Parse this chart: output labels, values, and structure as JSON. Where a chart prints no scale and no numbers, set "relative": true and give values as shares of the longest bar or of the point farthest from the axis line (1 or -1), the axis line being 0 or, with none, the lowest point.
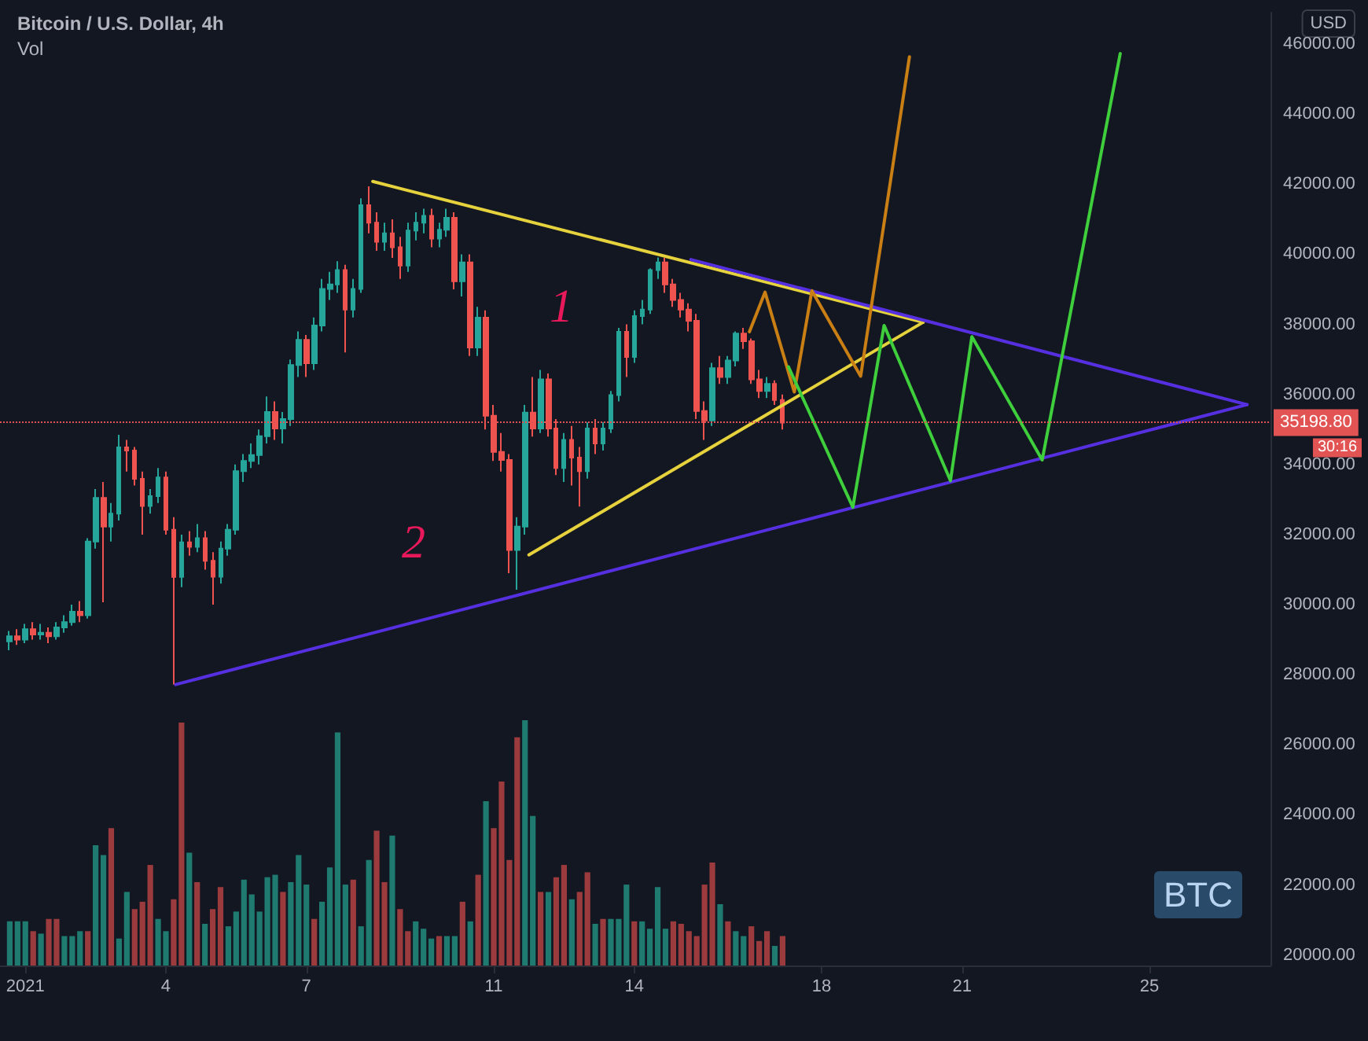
{
  "chart_data": [
    {
      "type": "candlestick",
      "title": "Bitcoin / U.S. Dollar, 4h",
      "subtitle": "Vol",
      "ylabel": "USD",
      "x": [
        "2020-12-31T16:00",
        "2020-12-31T20:00",
        "2021-01-01T00:00",
        "2021-01-01T04:00",
        "2021-01-01T08:00",
        "2021-01-01T12:00",
        "2021-01-01T16:00",
        "2021-01-01T20:00",
        "2021-01-02T00:00",
        "2021-01-02T04:00",
        "2021-01-02T08:00",
        "2021-01-02T12:00",
        "2021-01-02T16:00",
        "2021-01-02T20:00",
        "2021-01-03T00:00",
        "2021-01-03T04:00",
        "2021-01-03T08:00",
        "2021-01-03T12:00",
        "2021-01-03T16:00",
        "2021-01-03T20:00",
        "2021-01-04T00:00",
        "2021-01-04T04:00",
        "2021-01-04T08:00",
        "2021-01-04T12:00",
        "2021-01-04T16:00",
        "2021-01-04T20:00",
        "2021-01-05T00:00",
        "2021-01-05T04:00",
        "2021-01-05T08:00",
        "2021-01-05T12:00",
        "2021-01-05T16:00",
        "2021-01-05T20:00",
        "2021-01-06T00:00",
        "2021-01-06T04:00",
        "2021-01-06T08:00",
        "2021-01-06T12:00",
        "2021-01-06T16:00",
        "2021-01-06T20:00",
        "2021-01-07T00:00",
        "2021-01-07T04:00",
        "2021-01-07T08:00",
        "2021-01-07T12:00",
        "2021-01-07T16:00",
        "2021-01-07T20:00",
        "2021-01-08T00:00",
        "2021-01-08T04:00",
        "2021-01-08T08:00",
        "2021-01-08T12:00",
        "2021-01-08T16:00",
        "2021-01-08T20:00",
        "2021-01-09T00:00",
        "2021-01-09T04:00",
        "2021-01-09T08:00",
        "2021-01-09T12:00",
        "2021-01-09T16:00",
        "2021-01-09T20:00",
        "2021-01-10T00:00",
        "2021-01-10T04:00",
        "2021-01-10T08:00",
        "2021-01-10T12:00",
        "2021-01-10T16:00",
        "2021-01-10T20:00",
        "2021-01-11T00:00",
        "2021-01-11T04:00",
        "2021-01-11T08:00",
        "2021-01-11T12:00",
        "2021-01-11T16:00",
        "2021-01-11T20:00",
        "2021-01-12T00:00",
        "2021-01-12T04:00",
        "2021-01-12T08:00",
        "2021-01-12T12:00",
        "2021-01-12T16:00",
        "2021-01-12T20:00",
        "2021-01-13T00:00",
        "2021-01-13T04:00",
        "2021-01-13T08:00",
        "2021-01-13T12:00",
        "2021-01-13T16:00",
        "2021-01-13T20:00",
        "2021-01-14T00:00",
        "2021-01-14T04:00",
        "2021-01-14T08:00",
        "2021-01-14T12:00",
        "2021-01-14T16:00",
        "2021-01-14T20:00",
        "2021-01-15T00:00",
        "2021-01-15T04:00",
        "2021-01-15T08:00",
        "2021-01-15T12:00",
        "2021-01-15T16:00",
        "2021-01-15T20:00",
        "2021-01-16T00:00",
        "2021-01-16T04:00",
        "2021-01-16T08:00",
        "2021-01-16T12:00",
        "2021-01-16T16:00",
        "2021-01-16T20:00",
        "2021-01-17T00:00",
        "2021-01-17T04:00"
      ],
      "ohlc": [
        [
          28950,
          29250,
          28700,
          29100
        ],
        [
          29100,
          29300,
          28850,
          29000
        ],
        [
          29000,
          29450,
          28900,
          29300
        ],
        [
          29300,
          29500,
          29000,
          29150
        ],
        [
          29150,
          29450,
          29000,
          29200
        ],
        [
          29200,
          29350,
          28900,
          29100
        ],
        [
          29100,
          29500,
          29000,
          29350
        ],
        [
          29350,
          29700,
          29200,
          29500
        ],
        [
          29500,
          30000,
          29400,
          29800
        ],
        [
          29800,
          30100,
          29500,
          29700
        ],
        [
          29700,
          31900,
          29600,
          31800
        ],
        [
          31800,
          33300,
          31600,
          33050
        ],
        [
          33050,
          33500,
          30070,
          32230
        ],
        [
          32230,
          32900,
          31800,
          32600
        ],
        [
          32600,
          34850,
          32400,
          34490
        ],
        [
          34490,
          34700,
          33800,
          34400
        ],
        [
          34400,
          34500,
          33400,
          33590
        ],
        [
          33590,
          33800,
          32000,
          32820
        ],
        [
          32820,
          33300,
          32600,
          33100
        ],
        [
          33100,
          33900,
          32900,
          33630
        ],
        [
          33630,
          33800,
          32000,
          32140
        ],
        [
          32140,
          32500,
          27720,
          30790
        ],
        [
          30790,
          32000,
          30500,
          31780
        ],
        [
          31780,
          32100,
          31400,
          31650
        ],
        [
          31650,
          32300,
          31500,
          31900
        ],
        [
          31900,
          32100,
          31000,
          31250
        ],
        [
          31250,
          31500,
          30000,
          30800
        ],
        [
          30800,
          31800,
          30600,
          31600
        ],
        [
          31600,
          32300,
          31400,
          32140
        ],
        [
          32140,
          34000,
          32000,
          33810
        ],
        [
          33810,
          34300,
          33500,
          34100
        ],
        [
          34100,
          34600,
          33900,
          34270
        ],
        [
          34270,
          35000,
          34000,
          34810
        ],
        [
          34810,
          35940,
          34600,
          35500
        ],
        [
          35500,
          35800,
          34700,
          35030
        ],
        [
          35030,
          35500,
          34600,
          35300
        ],
        [
          35300,
          37000,
          35100,
          36840
        ],
        [
          36840,
          37800,
          36500,
          37560
        ],
        [
          37560,
          37700,
          36500,
          36890
        ],
        [
          36890,
          38200,
          36700,
          37970
        ],
        [
          37970,
          39300,
          37800,
          39010
        ],
        [
          39010,
          39500,
          38700,
          39140
        ],
        [
          39140,
          39800,
          38900,
          39550
        ],
        [
          39550,
          39700,
          37200,
          38420
        ],
        [
          38420,
          39300,
          38200,
          39010
        ],
        [
          39010,
          41600,
          38900,
          41400
        ],
        [
          41400,
          41940,
          40600,
          40900
        ],
        [
          40900,
          41200,
          40100,
          40360
        ],
        [
          40360,
          40900,
          40100,
          40600
        ],
        [
          40600,
          41000,
          39900,
          40200
        ],
        [
          40200,
          40500,
          39300,
          39680
        ],
        [
          39680,
          40900,
          39500,
          40680
        ],
        [
          40680,
          41200,
          40400,
          40900
        ],
        [
          40900,
          41300,
          40600,
          41100
        ],
        [
          41100,
          41300,
          40200,
          40450
        ],
        [
          40450,
          40900,
          40200,
          40700
        ],
        [
          40700,
          41300,
          40500,
          41040
        ],
        [
          41040,
          41200,
          39000,
          39230
        ],
        [
          39230,
          40000,
          38800,
          39770
        ],
        [
          39770,
          40000,
          37100,
          37340
        ],
        [
          37340,
          38500,
          37100,
          38190
        ],
        [
          38190,
          38400,
          35000,
          35390
        ],
        [
          35390,
          35700,
          34100,
          34360
        ],
        [
          34360,
          34900,
          33800,
          34130
        ],
        [
          34130,
          34300,
          30900,
          31560
        ],
        [
          31560,
          32500,
          30430,
          32230
        ],
        [
          32230,
          35700,
          32000,
          35480
        ],
        [
          35480,
          36500,
          34800,
          35030
        ],
        [
          35030,
          36700,
          34900,
          36430
        ],
        [
          36430,
          36600,
          34800,
          35030
        ],
        [
          35030,
          35300,
          33700,
          33900
        ],
        [
          33900,
          34900,
          33500,
          34700
        ],
        [
          34700,
          35100,
          33400,
          34200
        ],
        [
          34200,
          34500,
          32800,
          33810
        ],
        [
          33810,
          35200,
          33600,
          35030
        ],
        [
          35030,
          35300,
          34300,
          34600
        ],
        [
          34600,
          35200,
          34400,
          35030
        ],
        [
          35030,
          36100,
          34900,
          35980
        ],
        [
          35980,
          37900,
          35800,
          37790
        ],
        [
          37790,
          38000,
          36500,
          37070
        ],
        [
          37070,
          38400,
          36900,
          38240
        ],
        [
          38240,
          38700,
          38000,
          38420
        ],
        [
          38420,
          39600,
          38300,
          39550
        ],
        [
          39550,
          39910,
          39300,
          39770
        ],
        [
          39770,
          39900,
          38900,
          39140
        ],
        [
          39140,
          39300,
          38500,
          38700
        ],
        [
          38700,
          38900,
          38200,
          38420
        ],
        [
          38420,
          38600,
          37800,
          38100
        ],
        [
          38100,
          38300,
          35300,
          35530
        ],
        [
          35530,
          35800,
          34700,
          35260
        ],
        [
          35260,
          36900,
          35100,
          36750
        ],
        [
          36750,
          37100,
          36300,
          36500
        ],
        [
          36500,
          37100,
          36300,
          36970
        ],
        [
          36970,
          37800,
          36800,
          37740
        ],
        [
          37740,
          37900,
          37300,
          37520
        ],
        [
          37520,
          37600,
          36300,
          36430
        ],
        [
          36430,
          36700,
          35900,
          36100
        ],
        [
          36100,
          36500,
          35900,
          36300
        ],
        [
          36300,
          36400,
          35700,
          35840
        ],
        [
          35840,
          36000,
          35000,
          35198.8
        ]
      ],
      "colors": [
        "#26a69a",
        "#ef5350",
        "#26a69a",
        "#ef5350",
        "#26a69a",
        "#ef5350",
        "#26a69a",
        "#26a69a",
        "#26a69a",
        "#ef5350",
        "#26a69a",
        "#26a69a",
        "#ef5350",
        "#26a69a",
        "#26a69a",
        "#ef5350",
        "#ef5350",
        "#ef5350",
        "#26a69a",
        "#26a69a",
        "#ef5350",
        "#ef5350",
        "#26a69a",
        "#ef5350",
        "#26a69a",
        "#ef5350",
        "#ef5350",
        "#26a69a",
        "#26a69a",
        "#26a69a",
        "#26a69a",
        "#26a69a",
        "#26a69a",
        "#26a69a",
        "#ef5350",
        "#26a69a",
        "#26a69a",
        "#26a69a",
        "#ef5350",
        "#26a69a",
        "#26a69a",
        "#26a69a",
        "#26a69a",
        "#ef5350",
        "#26a69a",
        "#26a69a",
        "#ef5350",
        "#ef5350",
        "#26a69a",
        "#ef5350",
        "#ef5350",
        "#26a69a",
        "#26a69a",
        "#26a69a",
        "#ef5350",
        "#26a69a",
        "#26a69a",
        "#ef5350",
        "#26a69a",
        "#ef5350",
        "#26a69a",
        "#ef5350",
        "#ef5350",
        "#ef5350",
        "#ef5350",
        "#26a69a",
        "#26a69a",
        "#ef5350",
        "#26a69a",
        "#ef5350",
        "#ef5350",
        "#26a69a",
        "#ef5350",
        "#ef5350",
        "#26a69a",
        "#ef5350",
        "#26a69a",
        "#26a69a",
        "#26a69a",
        "#ef5350",
        "#26a69a",
        "#26a69a",
        "#26a69a",
        "#26a69a",
        "#ef5350",
        "#ef5350",
        "#ef5350",
        "#ef5350",
        "#ef5350",
        "#ef5350",
        "#26a69a",
        "#ef5350",
        "#26a69a",
        "#26a69a",
        "#ef5350",
        "#ef5350",
        "#ef5350",
        "#26a69a",
        "#ef5350",
        "#ef5350"
      ],
      "series": [
        {
          "type": "line",
          "color": "#e6d23c",
          "x": [
            "2021-01-08T10:00",
            "2021-01-20T04:00"
          ],
          "values": [
            42080,
            38060
          ]
        },
        {
          "type": "line",
          "color": "#e6d23c",
          "x": [
            "2021-01-11T18:00",
            "2021-01-20T04:00"
          ],
          "values": [
            31420,
            38060
          ]
        },
        {
          "type": "line",
          "color": "#5630e0",
          "x": [
            "2021-01-04T05:00",
            "2021-01-27T02:00"
          ],
          "values": [
            27720,
            35710
          ]
        },
        {
          "type": "line",
          "color": "#5630e0",
          "x": [
            "2021-01-15T05:00",
            "2021-01-27T02:00"
          ],
          "values": [
            39850,
            35710
          ]
        },
        {
          "type": "line",
          "color": "#c97f14",
          "x": [
            "2021-01-16T11:00",
            "2021-01-16T19:00",
            "2021-01-17T10:00",
            "2021-01-17T19:00",
            "2021-01-18T20:00",
            "2021-01-19T21:00"
          ],
          "values": [
            37790,
            38920,
            36070,
            38960,
            36520,
            45640
          ]
        },
        {
          "type": "line",
          "color": "#3fcf3c",
          "x": [
            "2021-01-17T07:00",
            "2021-01-18T16:00",
            "2021-01-19T08:00",
            "2021-01-20T18:00",
            "2021-01-21T05:00",
            "2021-01-22T17:00",
            "2021-01-24T09:00"
          ],
          "values": [
            36790,
            32780,
            37970,
            33540,
            37650,
            34130,
            45730
          ]
        }
      ],
      "xlim": [
        "2020-12-31T11:00",
        "2021-01-27T14:00"
      ],
      "xticks": [
        {
          "value": "2021-01-01",
          "label": "2021"
        },
        {
          "value": "2021-01-04",
          "label": "4"
        },
        {
          "value": "2021-01-07",
          "label": "7"
        },
        {
          "value": "2021-01-11",
          "label": "11"
        },
        {
          "value": "2021-01-14",
          "label": "14"
        },
        {
          "value": "2021-01-18",
          "label": "18"
        },
        {
          "value": "2021-01-21",
          "label": "21"
        },
        {
          "value": "2021-01-25",
          "label": "25"
        }
      ],
      "ylim": [
        19700,
        46900
      ],
      "yticks": [
        {
          "value": 20000,
          "label": "20000.00"
        },
        {
          "value": 22000,
          "label": "22000.00"
        },
        {
          "value": 24000,
          "label": "24000.00"
        },
        {
          "value": 26000,
          "label": "26000.00"
        },
        {
          "value": 28000,
          "label": "28000.00"
        },
        {
          "value": 30000,
          "label": "30000.00"
        },
        {
          "value": 32000,
          "label": "32000.00"
        },
        {
          "value": 34000,
          "label": "34000.00"
        },
        {
          "value": 36000,
          "label": "36000.00"
        },
        {
          "value": 38000,
          "label": "38000.00"
        },
        {
          "value": 40000,
          "label": "40000.00"
        },
        {
          "value": 42000,
          "label": "42000.00"
        },
        {
          "value": 44000,
          "label": "44000.00"
        },
        {
          "value": 46000,
          "label": "46000.00"
        }
      ],
      "ref_lines": [
        {
          "axis": "y",
          "value": 35198.8,
          "label": "35198.80",
          "color": "#e25454",
          "line_style": "dotted"
        }
      ],
      "annotations": [
        "1",
        "2",
        "BTC",
        "30:16"
      ],
      "marker": "none",
      "line_style": "solid"
    },
    {
      "type": "bar",
      "relative": true,
      "x": [
        "2020-12-31T16:00",
        "2020-12-31T20:00",
        "2021-01-01T00:00",
        "2021-01-01T04:00",
        "2021-01-01T08:00",
        "2021-01-01T12:00",
        "2021-01-01T16:00",
        "2021-01-01T20:00",
        "2021-01-02T00:00",
        "2021-01-02T04:00",
        "2021-01-02T08:00",
        "2021-01-02T12:00",
        "2021-01-02T16:00",
        "2021-01-02T20:00",
        "2021-01-03T00:00",
        "2021-01-03T04:00",
        "2021-01-03T08:00",
        "2021-01-03T12:00",
        "2021-01-03T16:00",
        "2021-01-03T20:00",
        "2021-01-04T00:00",
        "2021-01-04T04:00",
        "2021-01-04T08:00",
        "2021-01-04T12:00",
        "2021-01-04T16:00",
        "2021-01-04T20:00",
        "2021-01-05T00:00",
        "2021-01-05T04:00",
        "2021-01-05T08:00",
        "2021-01-05T12:00",
        "2021-01-05T16:00",
        "2021-01-05T20:00",
        "2021-01-06T00:00",
        "2021-01-06T04:00",
        "2021-01-06T08:00",
        "2021-01-06T12:00",
        "2021-01-06T16:00",
        "2021-01-06T20:00",
        "2021-01-07T00:00",
        "2021-01-07T04:00",
        "2021-01-07T08:00",
        "2021-01-07T12:00",
        "2021-01-07T16:00",
        "2021-01-07T20:00",
        "2021-01-08T00:00",
        "2021-01-08T04:00",
        "2021-01-08T08:00",
        "2021-01-08T12:00",
        "2021-01-08T16:00",
        "2021-01-08T20:00",
        "2021-01-09T00:00",
        "2021-01-09T04:00",
        "2021-01-09T08:00",
        "2021-01-09T12:00",
        "2021-01-09T16:00",
        "2021-01-09T20:00",
        "2021-01-10T00:00",
        "2021-01-10T04:00",
        "2021-01-10T08:00",
        "2021-01-10T12:00",
        "2021-01-10T16:00",
        "2021-01-10T20:00",
        "2021-01-11T00:00",
        "2021-01-11T04:00",
        "2021-01-11T08:00",
        "2021-01-11T12:00",
        "2021-01-11T16:00",
        "2021-01-11T20:00",
        "2021-01-12T00:00",
        "2021-01-12T04:00",
        "2021-01-12T08:00",
        "2021-01-12T12:00",
        "2021-01-12T16:00",
        "2021-01-12T20:00",
        "2021-01-13T00:00",
        "2021-01-13T04:00",
        "2021-01-13T08:00",
        "2021-01-13T12:00",
        "2021-01-13T16:00",
        "2021-01-13T20:00",
        "2021-01-14T00:00",
        "2021-01-14T04:00",
        "2021-01-14T08:00",
        "2021-01-14T12:00",
        "2021-01-14T16:00",
        "2021-01-14T20:00",
        "2021-01-15T00:00",
        "2021-01-15T04:00",
        "2021-01-15T08:00",
        "2021-01-15T12:00",
        "2021-01-15T16:00",
        "2021-01-15T20:00",
        "2021-01-16T00:00",
        "2021-01-16T04:00",
        "2021-01-16T08:00",
        "2021-01-16T12:00",
        "2021-01-16T16:00",
        "2021-01-16T20:00",
        "2021-01-17T00:00",
        "2021-01-17T04:00"
      ],
      "values": [
        0.18,
        0.18,
        0.18,
        0.14,
        0.13,
        0.19,
        0.19,
        0.12,
        0.12,
        0.14,
        0.14,
        0.49,
        0.45,
        0.56,
        0.11,
        0.3,
        0.23,
        0.26,
        0.41,
        0.19,
        0.14,
        0.27,
        0.99,
        0.46,
        0.34,
        0.17,
        0.23,
        0.32,
        0.16,
        0.22,
        0.35,
        0.29,
        0.22,
        0.36,
        0.37,
        0.3,
        0.34,
        0.45,
        0.33,
        0.19,
        0.26,
        0.4,
        0.95,
        0.33,
        0.35,
        0.16,
        0.43,
        0.55,
        0.34,
        0.53,
        0.23,
        0.14,
        0.18,
        0.15,
        0.11,
        0.12,
        0.12,
        0.12,
        0.26,
        0.18,
        0.37,
        0.67,
        0.56,
        0.75,
        0.43,
        0.93,
        1,
        0.61,
        0.3,
        0.3,
        0.36,
        0.41,
        0.27,
        0.3,
        0.38,
        0.17,
        0.19,
        0.19,
        0.19,
        0.33,
        0.18,
        0.18,
        0.15,
        0.32,
        0.15,
        0.18,
        0.17,
        0.14,
        0.12,
        0.33,
        0.42,
        0.25,
        0.18,
        0.14,
        0.12,
        0.16,
        0.1,
        0.14,
        0.08,
        0.12
      ],
      "colors": [
        "#1f7a70",
        "#1f7a70",
        "#1f7a70",
        "#9c3b3d",
        "#1f7a70",
        "#9c3b3d",
        "#9c3b3d",
        "#1f7a70",
        "#1f7a70",
        "#1f7a70",
        "#9c3b3d",
        "#1f7a70",
        "#1f7a70",
        "#9c3b3d",
        "#1f7a70",
        "#1f7a70",
        "#9c3b3d",
        "#9c3b3d",
        "#9c3b3d",
        "#1f7a70",
        "#1f7a70",
        "#9c3b3d",
        "#9c3b3d",
        "#1f7a70",
        "#9c3b3d",
        "#1f7a70",
        "#9c3b3d",
        "#9c3b3d",
        "#1f7a70",
        "#1f7a70",
        "#1f7a70",
        "#1f7a70",
        "#1f7a70",
        "#1f7a70",
        "#1f7a70",
        "#9c3b3d",
        "#1f7a70",
        "#1f7a70",
        "#1f7a70",
        "#9c3b3d",
        "#1f7a70",
        "#1f7a70",
        "#1f7a70",
        "#1f7a70",
        "#9c3b3d",
        "#1f7a70",
        "#1f7a70",
        "#9c3b3d",
        "#9c3b3d",
        "#1f7a70",
        "#9c3b3d",
        "#9c3b3d",
        "#1f7a70",
        "#1f7a70",
        "#1f7a70",
        "#9c3b3d",
        "#1f7a70",
        "#1f7a70",
        "#9c3b3d",
        "#1f7a70",
        "#9c3b3d",
        "#1f7a70",
        "#9c3b3d",
        "#9c3b3d",
        "#9c3b3d",
        "#9c3b3d",
        "#1f7a70",
        "#1f7a70",
        "#9c3b3d",
        "#1f7a70",
        "#9c3b3d",
        "#9c3b3d",
        "#1f7a70",
        "#9c3b3d",
        "#9c3b3d",
        "#1f7a70",
        "#9c3b3d",
        "#1f7a70",
        "#1f7a70",
        "#1f7a70",
        "#9c3b3d",
        "#1f7a70",
        "#1f7a70",
        "#1f7a70",
        "#1f7a70",
        "#9c3b3d",
        "#9c3b3d",
        "#9c3b3d",
        "#9c3b3d",
        "#9c3b3d",
        "#9c3b3d",
        "#1f7a70",
        "#9c3b3d",
        "#1f7a70",
        "#1f7a70",
        "#9c3b3d",
        "#9c3b3d",
        "#9c3b3d",
        "#1f7a70",
        "#9c3b3d"
      ],
      "xlim": [
        "2020-12-31T11:00",
        "2021-01-27T14:00"
      ],
      "tick_labels": false
    }
  ]
}
